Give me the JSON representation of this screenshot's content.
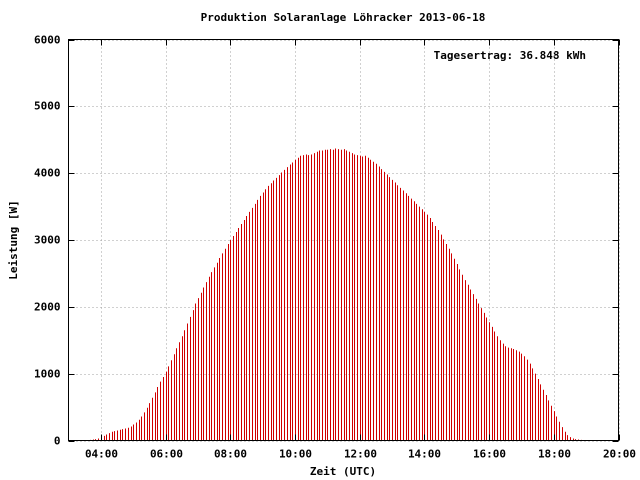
{
  "chart_data": {
    "type": "impulse",
    "title": "Produktion Solaranlage Löhracker 2013-06-18",
    "annotation": "Tagesertrag: 36.848 kWh",
    "x_label": "Zeit (UTC)",
    "y_label": "Leistung [W]",
    "color": "#d00000",
    "grid": true,
    "xlim": [
      180,
      1200
    ],
    "ylim": [
      0,
      6000
    ],
    "xticks": [
      {
        "value": 240,
        "label": "04:00"
      },
      {
        "value": 360,
        "label": "06:00"
      },
      {
        "value": 480,
        "label": "08:00"
      },
      {
        "value": 600,
        "label": "10:00"
      },
      {
        "value": 720,
        "label": "12:00"
      },
      {
        "value": 840,
        "label": "14:00"
      },
      {
        "value": 960,
        "label": "16:00"
      },
      {
        "value": 1080,
        "label": "18:00"
      },
      {
        "value": 1200,
        "label": "20:00"
      }
    ],
    "yticks": [
      0,
      1000,
      2000,
      3000,
      4000,
      5000,
      6000
    ],
    "x": [
      215,
      220,
      225,
      230,
      235,
      240,
      245,
      250,
      255,
      260,
      265,
      270,
      275,
      280,
      285,
      290,
      295,
      300,
      305,
      310,
      315,
      320,
      325,
      330,
      335,
      340,
      345,
      350,
      355,
      360,
      365,
      370,
      375,
      380,
      385,
      390,
      395,
      400,
      405,
      410,
      415,
      420,
      425,
      430,
      435,
      440,
      445,
      450,
      455,
      460,
      465,
      470,
      475,
      480,
      485,
      490,
      495,
      500,
      505,
      510,
      515,
      520,
      525,
      530,
      535,
      540,
      545,
      550,
      555,
      560,
      565,
      570,
      575,
      580,
      585,
      590,
      595,
      600,
      605,
      610,
      615,
      620,
      625,
      630,
      635,
      640,
      645,
      650,
      655,
      660,
      665,
      670,
      675,
      680,
      685,
      690,
      695,
      700,
      705,
      710,
      715,
      720,
      725,
      730,
      735,
      740,
      745,
      750,
      755,
      760,
      765,
      770,
      775,
      780,
      785,
      790,
      795,
      800,
      805,
      810,
      815,
      820,
      825,
      830,
      835,
      840,
      845,
      850,
      855,
      860,
      865,
      870,
      875,
      880,
      885,
      890,
      895,
      900,
      905,
      910,
      915,
      920,
      925,
      930,
      935,
      940,
      945,
      950,
      955,
      960,
      965,
      970,
      975,
      980,
      985,
      990,
      995,
      1000,
      1005,
      1010,
      1015,
      1020,
      1025,
      1030,
      1035,
      1040,
      1045,
      1050,
      1055,
      1060,
      1065,
      1070,
      1075,
      1080,
      1085,
      1090,
      1095,
      1100,
      1105,
      1110,
      1115,
      1120,
      1125,
      1130,
      1135,
      1140
    ],
    "values": [
      5,
      10,
      15,
      20,
      30,
      50,
      70,
      90,
      110,
      130,
      140,
      150,
      160,
      170,
      180,
      190,
      210,
      240,
      270,
      310,
      360,
      420,
      490,
      560,
      640,
      720,
      800,
      880,
      950,
      1030,
      1110,
      1200,
      1290,
      1380,
      1470,
      1560,
      1650,
      1750,
      1850,
      1950,
      2050,
      2130,
      2210,
      2290,
      2370,
      2450,
      2520,
      2590,
      2660,
      2730,
      2800,
      2870,
      2940,
      3000,
      3060,
      3120,
      3180,
      3240,
      3300,
      3360,
      3420,
      3480,
      3540,
      3600,
      3660,
      3710,
      3760,
      3810,
      3850,
      3890,
      3930,
      3970,
      4010,
      4050,
      4090,
      4130,
      4160,
      4200,
      4230,
      4260,
      4270,
      4280,
      4270,
      4280,
      4300,
      4320,
      4340,
      4340,
      4350,
      4350,
      4360,
      4350,
      4370,
      4360,
      4350,
      4360,
      4340,
      4320,
      4300,
      4280,
      4270,
      4260,
      4250,
      4260,
      4230,
      4200,
      4170,
      4140,
      4100,
      4060,
      4020,
      3980,
      3940,
      3900,
      3860,
      3820,
      3780,
      3740,
      3700,
      3660,
      3620,
      3580,
      3540,
      3500,
      3460,
      3420,
      3380,
      3330,
      3270,
      3210,
      3150,
      3080,
      3010,
      2940,
      2870,
      2800,
      2720,
      2640,
      2560,
      2480,
      2400,
      2330,
      2260,
      2190,
      2120,
      2050,
      1980,
      1910,
      1840,
      1770,
      1700,
      1630,
      1560,
      1500,
      1450,
      1410,
      1390,
      1380,
      1370,
      1350,
      1330,
      1300,
      1260,
      1210,
      1150,
      1080,
      1000,
      920,
      840,
      760,
      680,
      600,
      520,
      440,
      360,
      280,
      200,
      130,
      80,
      50,
      30,
      20,
      15,
      10,
      5,
      5
    ]
  }
}
